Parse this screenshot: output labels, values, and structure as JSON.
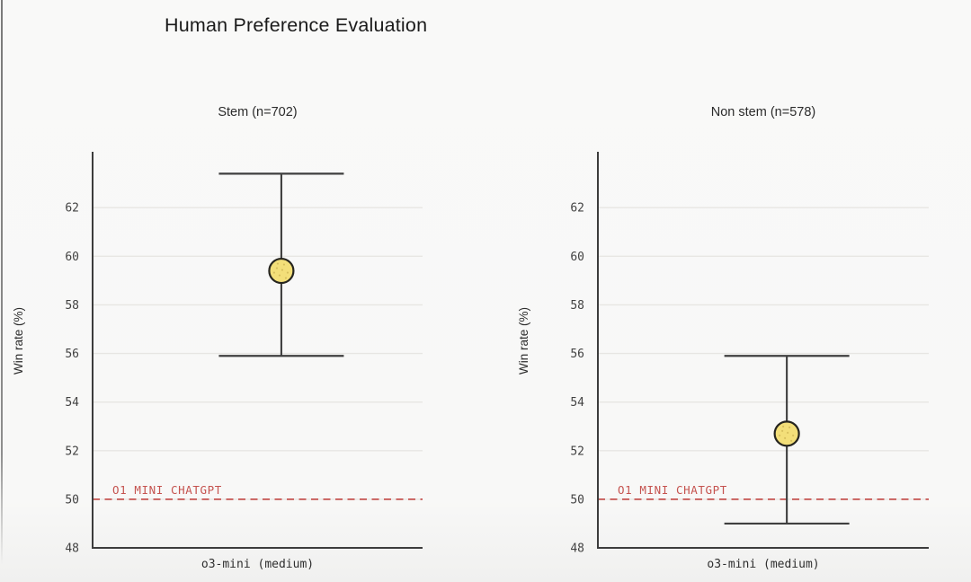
{
  "page": {
    "title": "Human Preference Evaluation",
    "background": "#f8f8f7"
  },
  "colors": {
    "accent_red": "#c5534f",
    "marker_fill": "#f3df79",
    "marker_speckle": "#a98a2e",
    "marker_stroke": "#26251f",
    "grid": "#e7e6e3",
    "axis": "#3c3c3c",
    "errorbar": "#3f3f3f",
    "tick_text": "#424242",
    "subtitle_text": "#2b2b2b",
    "title_text": "#1b1b1b"
  },
  "chart_data": [
    {
      "type": "scatter",
      "title": "Stem (n=702)",
      "ylabel": "Win rate (%)",
      "xlabel": "o3-mini (medium)",
      "categories": [
        "o3-mini (medium)"
      ],
      "series": [
        {
          "name": "o3-mini (medium)",
          "value": 59.4,
          "ci_low": 55.9,
          "ci_high": 63.4
        }
      ],
      "baseline": {
        "value": 50,
        "label": "O1 MINI CHATGPT"
      },
      "yticks": [
        48,
        50,
        52,
        54,
        56,
        58,
        60,
        62
      ],
      "ylim": [
        48,
        64.3
      ],
      "grid": true,
      "legend": "none"
    },
    {
      "type": "scatter",
      "title": "Non stem (n=578)",
      "ylabel": "Win rate (%)",
      "xlabel": "o3-mini (medium)",
      "categories": [
        "o3-mini (medium)"
      ],
      "series": [
        {
          "name": "o3-mini (medium)",
          "value": 52.7,
          "ci_low": 49.0,
          "ci_high": 55.9
        }
      ],
      "baseline": {
        "value": 50,
        "label": "O1 MINI CHATGPT"
      },
      "yticks": [
        48,
        50,
        52,
        54,
        56,
        58,
        60,
        62
      ],
      "ylim": [
        48,
        64.3
      ],
      "grid": true,
      "legend": "none"
    }
  ]
}
